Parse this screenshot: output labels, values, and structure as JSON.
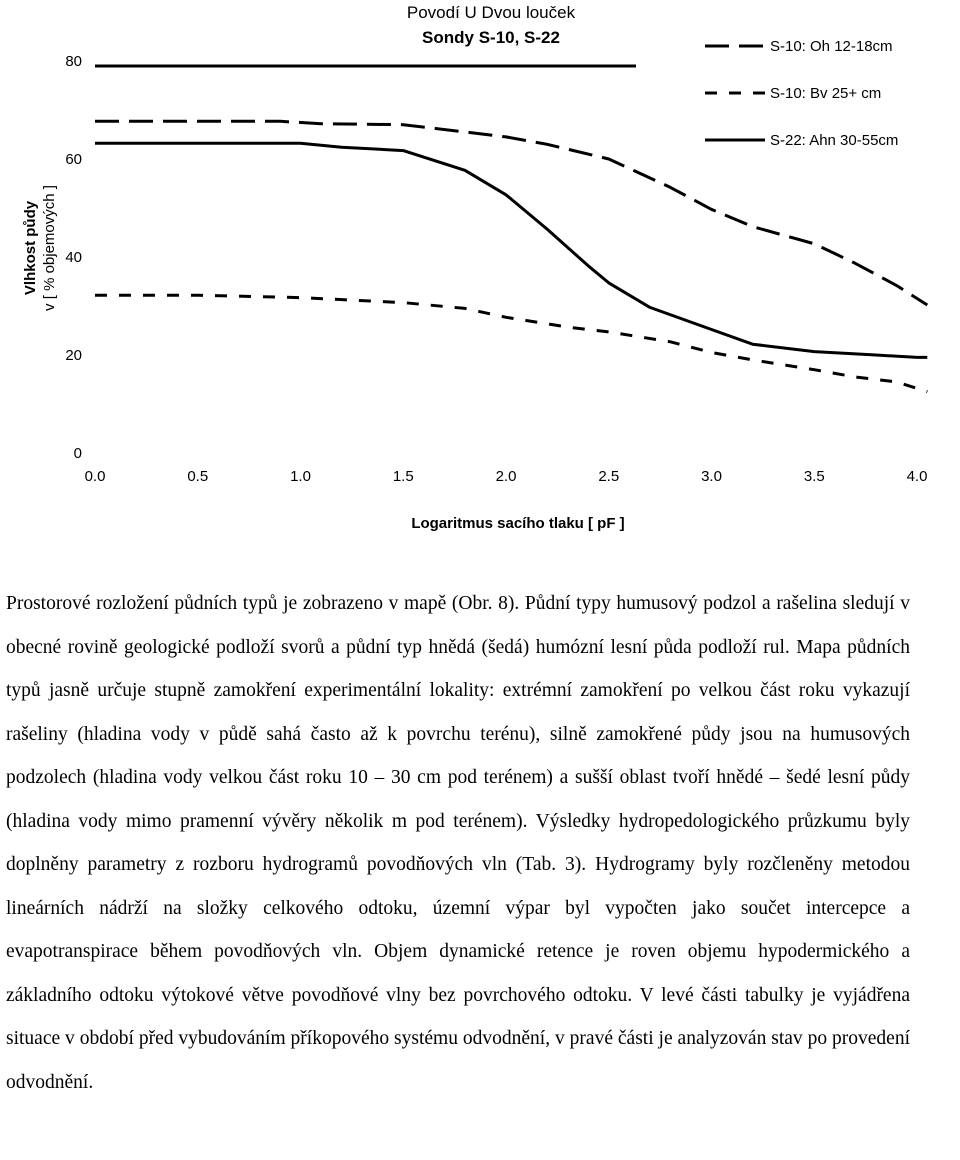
{
  "chart_data": {
    "type": "line",
    "title": "Povodí U Dvou louček",
    "subtitle": "Sondy S-10, S-22",
    "xlabel": "Logaritmus sacího tlaku [ pF ]",
    "ylabel": "Vlhkost půdy",
    "ylabel_unit": "v [ % objemových ]",
    "xlim": [
      0,
      4.0
    ],
    "ylim": [
      0,
      80
    ],
    "x_ticks": [
      "0.0",
      "0.5",
      "1.0",
      "1.5",
      "2.0",
      "2.5",
      "3.0",
      "3.5",
      "4.0"
    ],
    "y_ticks": [
      "0",
      "20",
      "40",
      "60",
      "80"
    ],
    "grid": false,
    "legend_position": "top-right",
    "series": [
      {
        "name": "S-10: Oh 12-18cm",
        "style": "long-dash",
        "x": [
          0.0,
          0.5,
          0.9,
          1.1,
          1.5,
          1.8,
          2.0,
          2.2,
          2.5,
          2.8,
          3.0,
          3.2,
          3.5,
          3.7,
          3.9,
          4.05
        ],
        "y": [
          67.5,
          67.5,
          67.5,
          67.0,
          66.8,
          65.3,
          64.3,
          62.8,
          59.8,
          54.0,
          49.5,
          46.0,
          42.5,
          38.5,
          34.0,
          30.0
        ]
      },
      {
        "name": "S-10: Bv 25+ cm",
        "style": "short-dash",
        "x": [
          0.0,
          0.5,
          1.0,
          1.5,
          1.8,
          2.0,
          2.3,
          2.5,
          2.8,
          3.0,
          3.2,
          3.5,
          3.7,
          3.9,
          4.05
        ],
        "y": [
          32.0,
          32.0,
          31.5,
          30.5,
          29.3,
          27.5,
          25.5,
          24.5,
          22.5,
          20.3,
          18.8,
          16.8,
          15.3,
          14.3,
          12.3
        ]
      },
      {
        "name": "S-22: Ahn 30-55cm",
        "style": "solid",
        "x": [
          0.0,
          0.5,
          1.0,
          1.2,
          1.5,
          1.8,
          2.0,
          2.2,
          2.4,
          2.5,
          2.7,
          3.0,
          3.2,
          3.5,
          3.8,
          4.0,
          4.05
        ],
        "y": [
          63.0,
          63.0,
          63.0,
          62.2,
          61.5,
          57.5,
          52.5,
          45.5,
          38.0,
          34.5,
          29.5,
          25.0,
          22.0,
          20.5,
          19.8,
          19.3,
          19.3
        ]
      }
    ]
  },
  "text": {
    "paragraph": "Prostorové rozložení půdních typů je zobrazeno v mapě (Obr. 8). Půdní typy humusový podzol a rašelina sledují v obecné rovině geologické podloží svorů a půdní typ hnědá (šedá) humózní lesní půda podloží rul. Mapa půdních typů jasně určuje stupně zamokření experimentální lokality: extrémní zamokření po velkou část roku vykazují rašeliny (hladina vody v půdě sahá často až k povrchu terénu), silně zamokřené půdy jsou na humusových podzolech (hladina vody velkou část roku 10 – 30 cm pod terénem) a sušší oblast tvoří hnědé – šedé lesní půdy (hladina vody mimo pramenní vývěry několik m pod terénem). Výsledky hydropedologického průzkumu byly doplněny parametry z rozboru hydrogramů povodňových vln (Tab. 3). Hydrogramy byly rozčleněny metodou lineárních nádrží na složky celkového odtoku, územní výpar byl vypočten jako součet intercepce a evapotranspirace během povodňových vln. Objem dynamické retence je roven objemu hypodermického a základního odtoku výtokové větve povodňové vlny bez povrchového odtoku. V levé části tabulky je vyjádřena situace v období před vybudováním příkopového systému odvodnění, v pravé části je analyzován stav po provedení odvodnění."
  }
}
